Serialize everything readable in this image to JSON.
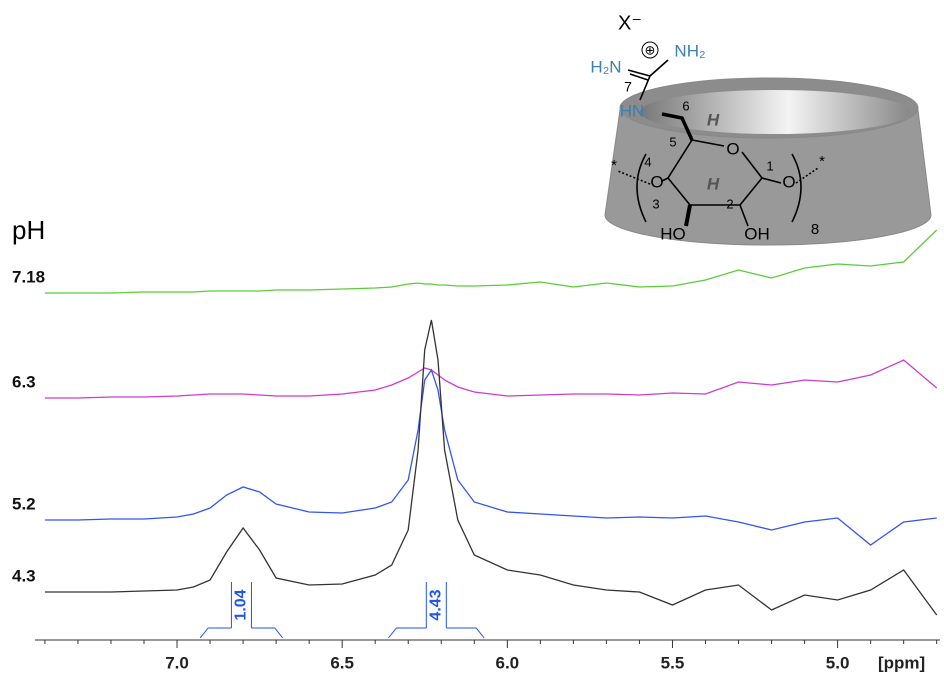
{
  "chart_data": {
    "type": "line",
    "legend_title": "pH",
    "xlabel": "[ppm]",
    "xlim": [
      7.43,
      4.69
    ],
    "ylim": [
      0,
      420
    ],
    "xticks": [
      {
        "value": 7,
        "label": "7.0"
      },
      6.5,
      {
        "value": 6,
        "label": "6.0"
      },
      5.5,
      {
        "value": 5,
        "label": "5.0"
      }
    ],
    "xminorticks": [
      7.4,
      7.3,
      7.2,
      7.1,
      6.9,
      6.8,
      6.7,
      6.6,
      6.4,
      6.3,
      6.2,
      6.1,
      5.9,
      5.8,
      5.7,
      5.6,
      5.4,
      5.3,
      5.2,
      5.1,
      4.9,
      4.8,
      4.7
    ],
    "x": [
      7.4,
      7.3,
      7.2,
      7.1,
      7.0,
      6.95,
      6.9,
      6.85,
      6.8,
      6.75,
      6.7,
      6.6,
      6.5,
      6.4,
      6.35,
      6.3,
      6.27,
      6.25,
      6.23,
      6.21,
      6.19,
      6.15,
      6.1,
      6.0,
      5.9,
      5.8,
      5.7,
      5.6,
      5.5,
      5.4,
      5.3,
      5.2,
      5.1,
      5.0,
      4.9,
      4.8,
      4.7
    ],
    "series": [
      {
        "name": "7.18",
        "color": "#5ccc3a",
        "values": [
          337,
          337,
          337,
          338,
          338,
          338,
          339,
          339,
          339,
          339,
          340,
          340,
          341,
          342,
          343,
          346,
          347,
          346,
          346,
          345,
          345,
          344,
          344,
          345,
          348,
          343,
          347,
          343,
          344,
          350,
          360,
          352,
          362,
          366,
          364,
          368,
          400
        ]
      },
      {
        "name": "6.3",
        "color": "#cc3ccc",
        "values": [
          232,
          232,
          233,
          233,
          234,
          235,
          236,
          236,
          236,
          235,
          234,
          234,
          236,
          240,
          245,
          252,
          258,
          262,
          260,
          255,
          250,
          243,
          238,
          234,
          235,
          236,
          236,
          235,
          237,
          236,
          248,
          245,
          250,
          248,
          255,
          270,
          242
        ]
      },
      {
        "name": "5.2",
        "color": "#3355ee",
        "values": [
          110,
          110,
          111,
          111,
          113,
          116,
          122,
          135,
          143,
          138,
          126,
          118,
          117,
          122,
          128,
          150,
          200,
          250,
          260,
          240,
          200,
          150,
          128,
          118,
          116,
          114,
          112,
          113,
          112,
          114,
          108,
          100,
          108,
          112,
          85,
          108,
          112
        ]
      },
      {
        "name": "4.3",
        "color": "#333333",
        "values": [
          38,
          38,
          38,
          39,
          40,
          43,
          50,
          78,
          102,
          80,
          52,
          45,
          46,
          55,
          65,
          100,
          180,
          280,
          310,
          270,
          180,
          110,
          75,
          60,
          55,
          45,
          40,
          38,
          25,
          40,
          45,
          20,
          35,
          30,
          40,
          60,
          15
        ]
      }
    ],
    "integrals": [
      {
        "value": 1.04,
        "range": [
          6.93,
          6.68
        ]
      },
      {
        "value": 4.43,
        "range": [
          6.36,
          6.07
        ]
      }
    ],
    "integral_color": "#2255ee",
    "structure_labels": [
      "X⁻",
      "⊕",
      "H₂N",
      "NH₂",
      "7",
      "HN",
      "6",
      "H",
      "5",
      "O",
      "1",
      "4",
      "H",
      "*",
      "O",
      "O",
      "*",
      "3",
      "2",
      "HO",
      "OH",
      "8"
    ]
  }
}
